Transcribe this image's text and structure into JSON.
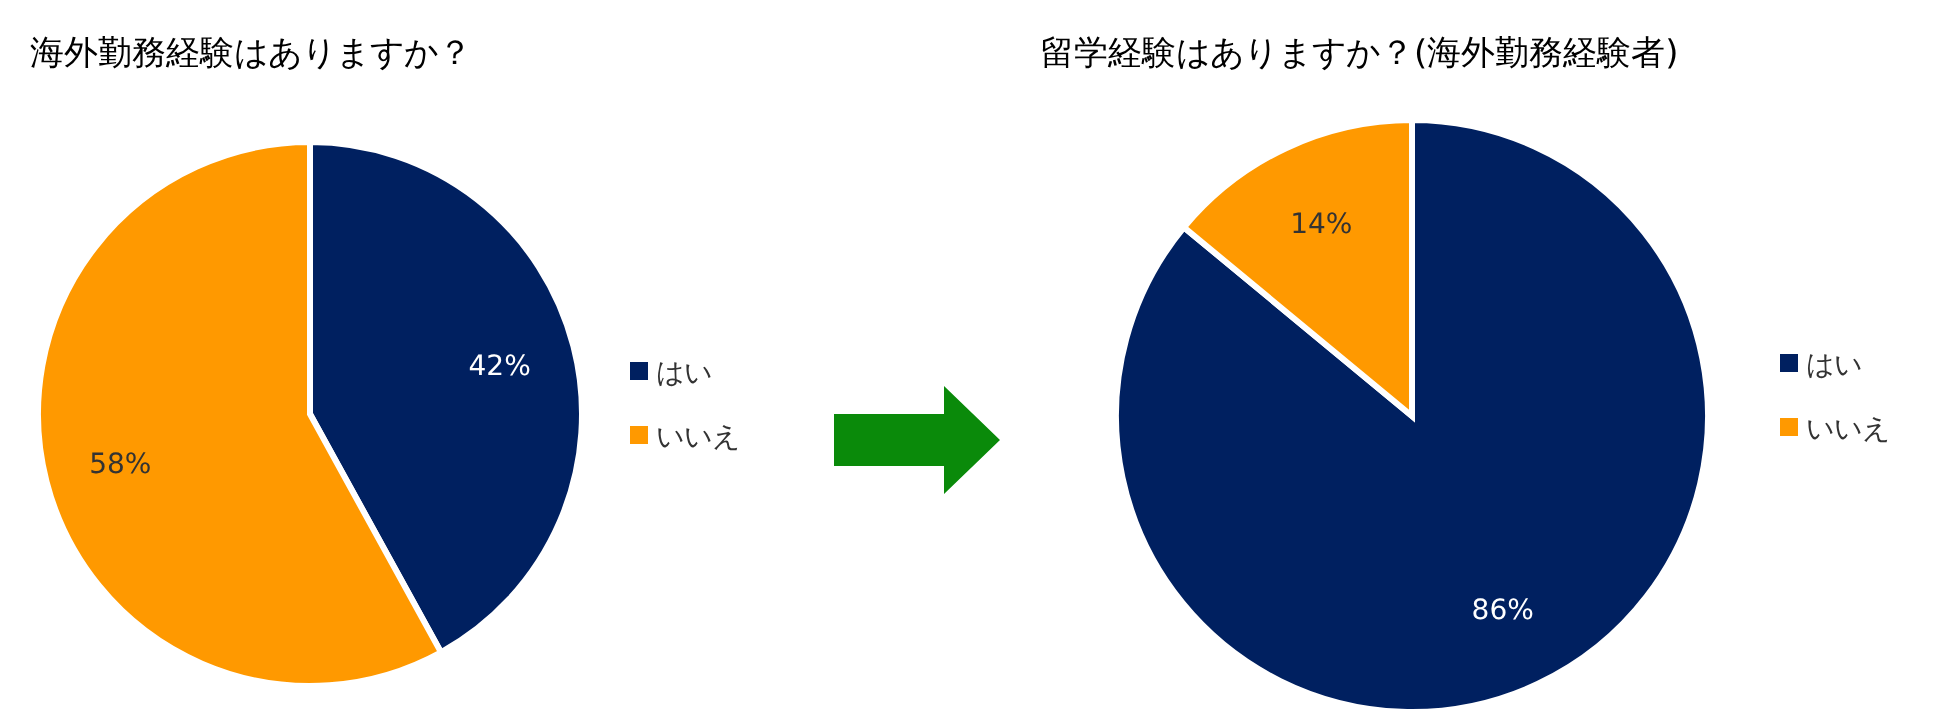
{
  "chart_data": [
    {
      "type": "pie",
      "title": "海外勤務経験はありますか？",
      "categories": [
        "はい",
        "いいえ"
      ],
      "values": [
        42,
        58
      ],
      "colors": [
        "#002060",
        "#ff9900"
      ],
      "value_labels": [
        "42%",
        "58%"
      ],
      "legend": "right"
    },
    {
      "type": "pie",
      "title": "留学経験はありますか？(海外勤務経験者)",
      "categories": [
        "はい",
        "いいえ"
      ],
      "values": [
        86,
        14
      ],
      "colors": [
        "#002060",
        "#ff9900"
      ],
      "value_labels": [
        "86%",
        "14%"
      ],
      "legend": "right"
    }
  ]
}
